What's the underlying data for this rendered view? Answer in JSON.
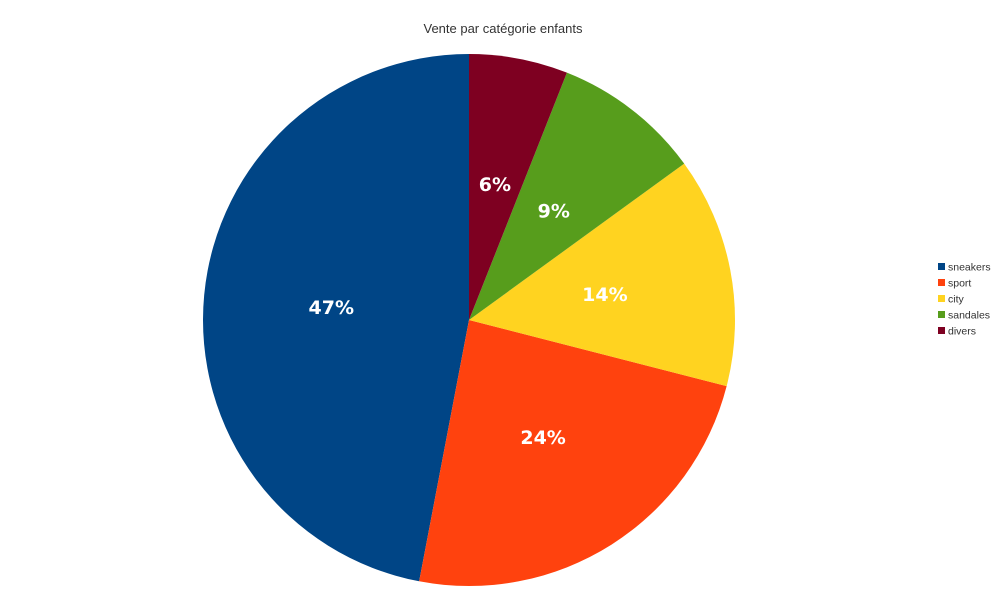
{
  "chart_data": {
    "type": "pie",
    "title": "Vente par catégorie enfants",
    "categories": [
      "sneakers",
      "sport",
      "city",
      "sandales",
      "divers"
    ],
    "values": [
      47,
      24,
      14,
      9,
      6
    ],
    "data_labels": [
      "47%",
      "24%",
      "14%",
      "9%",
      "6%"
    ],
    "colors": [
      "#004586",
      "#ff420e",
      "#ffd320",
      "#579d1c",
      "#7e0021"
    ],
    "start": "top",
    "direction": "counterclockwise",
    "legend_placement": "right"
  }
}
